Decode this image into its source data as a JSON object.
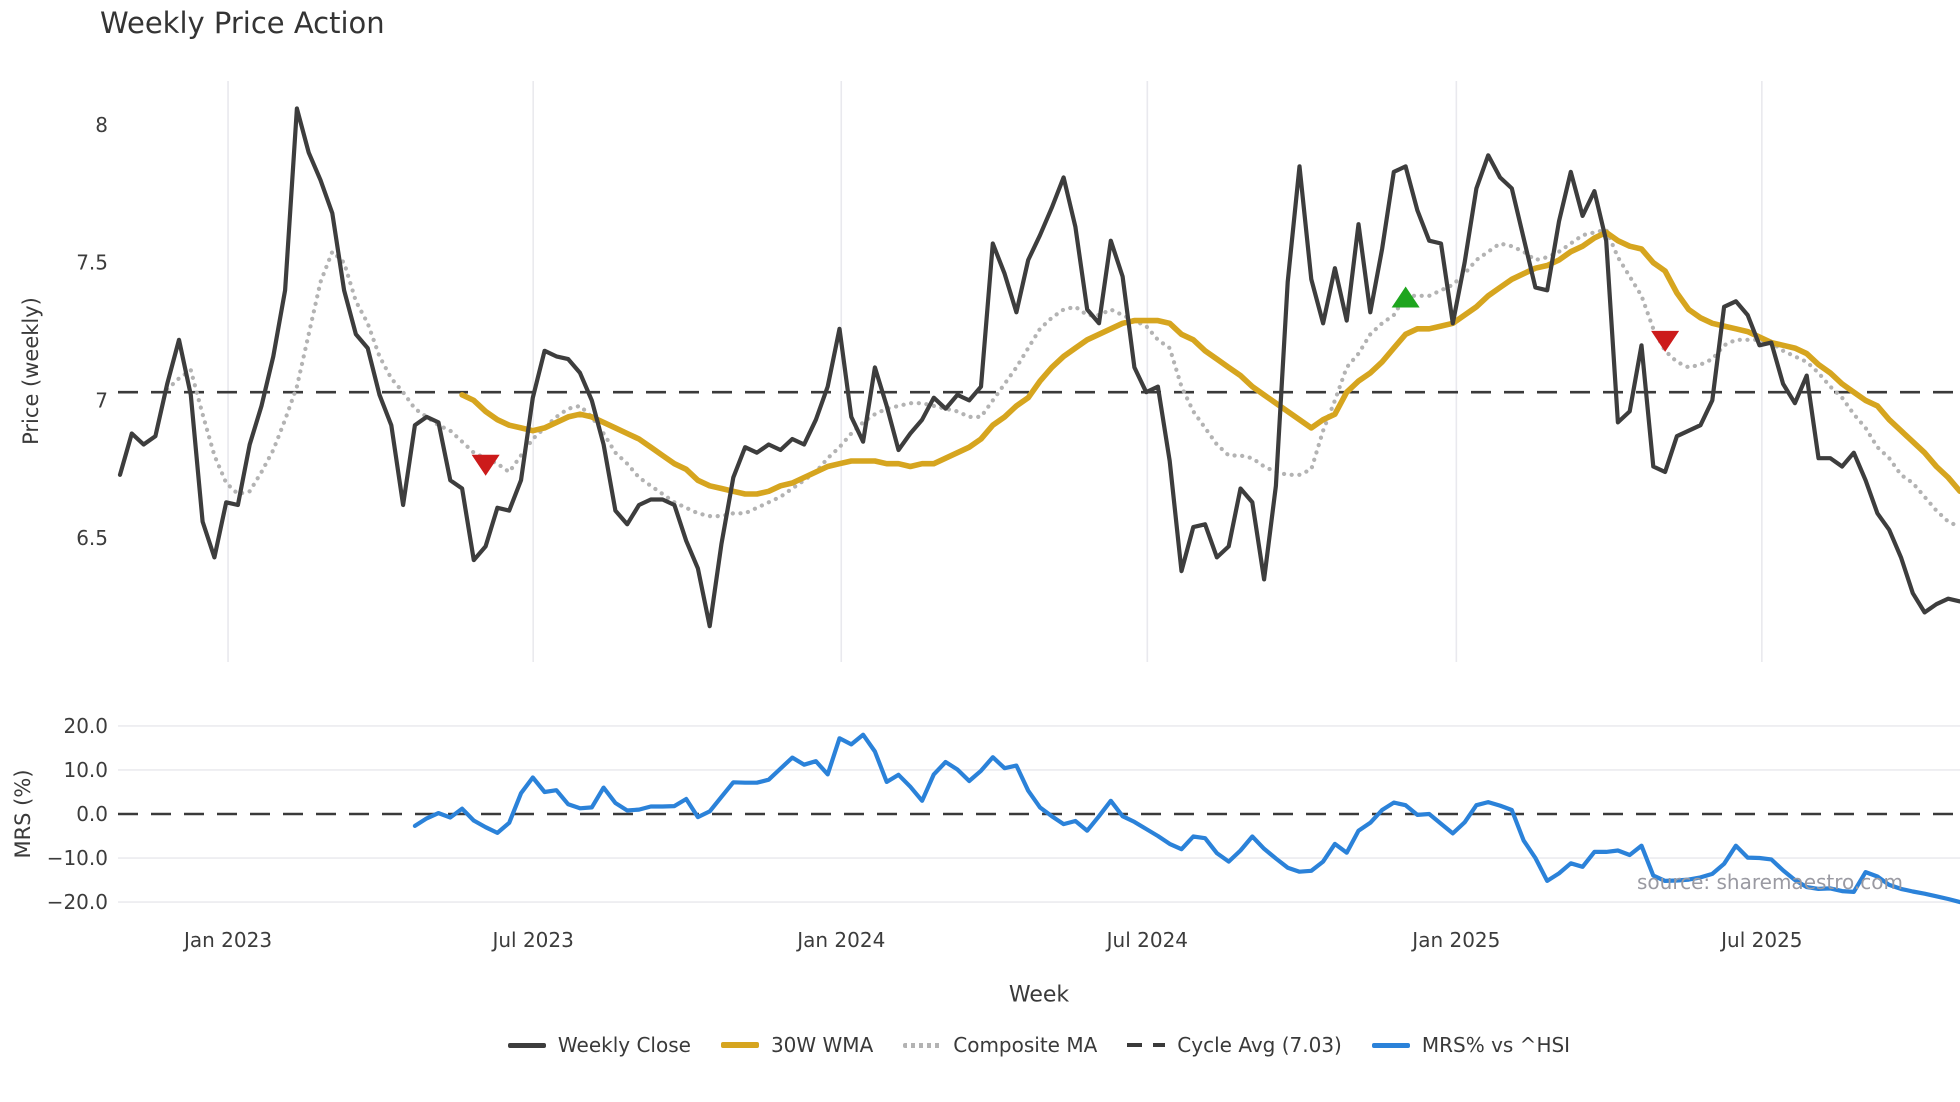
{
  "title": "Weekly Price Action",
  "watermark": "source: sharemaestro.com",
  "chart_data": {
    "type": "line",
    "xlabel": "Week",
    "weeks_total": 156,
    "x_ticks": [
      {
        "label": "Jan 2023",
        "week": 9.16
      },
      {
        "label": "Jul 2023",
        "week": 35.03
      },
      {
        "label": "Jan 2024",
        "week": 61.15
      },
      {
        "label": "Jul 2024",
        "week": 87.1
      },
      {
        "label": "Jan 2025",
        "week": 113.3
      },
      {
        "label": "Jul 2025",
        "week": 139.2
      }
    ],
    "panels": [
      {
        "name": "price",
        "ylabel": "Price (weekly)",
        "ylim": [
          6.05,
          8.16
        ],
        "yticks": [
          {
            "label": "8",
            "value": 8.0
          },
          {
            "label": "7.5",
            "value": 7.5
          },
          {
            "label": "7",
            "value": 7.0
          },
          {
            "label": "6.5",
            "value": 6.5
          }
        ],
        "grid": "vertical"
      },
      {
        "name": "mrs",
        "ylabel": "MRS (%)",
        "ylim": [
          -24.3,
          24.3
        ],
        "yticks": [
          {
            "label": "20.0",
            "value": 20
          },
          {
            "label": "10.0",
            "value": 10
          },
          {
            "label": "0.0",
            "value": 0
          },
          {
            "label": "−10.0",
            "value": -10
          },
          {
            "label": "−20.0",
            "value": -20
          }
        ],
        "grid": "horizontal",
        "zero_line_dashed": true
      }
    ],
    "series": {
      "weekly_close": {
        "label": "Weekly Close",
        "color": "#3d3d3d",
        "panel": "price",
        "start_week": 0,
        "values": [
          6.73,
          6.88,
          6.84,
          6.87,
          7.06,
          7.22,
          7.02,
          6.56,
          6.43,
          6.63,
          6.62,
          6.84,
          6.98,
          7.16,
          7.4,
          8.06,
          7.9,
          7.8,
          7.68,
          7.4,
          7.24,
          7.19,
          7.02,
          6.91,
          6.62,
          6.91,
          6.94,
          6.92,
          6.71,
          6.68,
          6.42,
          6.47,
          6.61,
          6.6,
          6.71,
          7.01,
          7.18,
          7.16,
          7.15,
          7.1,
          7.0,
          6.84,
          6.6,
          6.55,
          6.62,
          6.64,
          6.64,
          6.62,
          6.49,
          6.39,
          6.18,
          6.48,
          6.72,
          6.83,
          6.81,
          6.84,
          6.82,
          6.86,
          6.84,
          6.93,
          7.05,
          7.26,
          6.94,
          6.85,
          7.12,
          6.98,
          6.82,
          6.88,
          6.93,
          7.01,
          6.97,
          7.02,
          7.0,
          7.05,
          7.57,
          7.46,
          7.32,
          7.51,
          7.6,
          7.7,
          7.81,
          7.63,
          7.33,
          7.28,
          7.58,
          7.45,
          7.12,
          7.03,
          7.05,
          6.78,
          6.38,
          6.54,
          6.55,
          6.43,
          6.47,
          6.68,
          6.63,
          6.35,
          6.69,
          7.43,
          7.85,
          7.44,
          7.28,
          7.48,
          7.29,
          7.64,
          7.32,
          7.55,
          7.83,
          7.85,
          7.69,
          7.58,
          7.57,
          7.28,
          7.5,
          7.77,
          7.89,
          7.81,
          7.77,
          7.59,
          7.41,
          7.4,
          7.65,
          7.83,
          7.67,
          7.76,
          7.58,
          6.92,
          6.96,
          7.2,
          6.76,
          6.74,
          6.87,
          6.89,
          6.91,
          7.0,
          7.34,
          7.36,
          7.31,
          7.2,
          7.21,
          7.06,
          6.99,
          7.09,
          6.79,
          6.79,
          6.76,
          6.81,
          6.71,
          6.59,
          6.53,
          6.43,
          6.3,
          6.23,
          6.26,
          6.28,
          6.27
        ]
      },
      "wma_30w": {
        "label": "30W WMA",
        "color": "#d6a51f",
        "panel": "price",
        "start_week": 29,
        "values": [
          7.02,
          7.0,
          6.96,
          6.93,
          6.91,
          6.9,
          6.89,
          6.9,
          6.92,
          6.94,
          6.95,
          6.94,
          6.92,
          6.9,
          6.88,
          6.86,
          6.83,
          6.8,
          6.77,
          6.75,
          6.71,
          6.69,
          6.68,
          6.67,
          6.66,
          6.66,
          6.67,
          6.69,
          6.7,
          6.72,
          6.74,
          6.76,
          6.77,
          6.78,
          6.78,
          6.78,
          6.77,
          6.77,
          6.76,
          6.77,
          6.77,
          6.79,
          6.81,
          6.83,
          6.86,
          6.91,
          6.94,
          6.98,
          7.01,
          7.07,
          7.12,
          7.16,
          7.19,
          7.22,
          7.24,
          7.26,
          7.28,
          7.29,
          7.29,
          7.29,
          7.28,
          7.24,
          7.22,
          7.18,
          7.15,
          7.12,
          7.09,
          7.05,
          7.02,
          6.99,
          6.96,
          6.93,
          6.9,
          6.93,
          6.95,
          7.03,
          7.07,
          7.1,
          7.14,
          7.19,
          7.24,
          7.26,
          7.26,
          7.27,
          7.28,
          7.31,
          7.34,
          7.38,
          7.41,
          7.44,
          7.46,
          7.48,
          7.49,
          7.51,
          7.54,
          7.56,
          7.59,
          7.61,
          7.58,
          7.56,
          7.55,
          7.5,
          7.47,
          7.39,
          7.33,
          7.3,
          7.28,
          7.27,
          7.26,
          7.25,
          7.23,
          7.21,
          7.2,
          7.19,
          7.17,
          7.13,
          7.1,
          7.06,
          7.03,
          7.0,
          6.98,
          6.93,
          6.89,
          6.85,
          6.81,
          6.76,
          6.72,
          6.67
        ]
      },
      "composite_ma": {
        "label": "Composite MA",
        "color": "#b3b3b3",
        "panel": "price",
        "style": "dotted",
        "start_week": 4,
        "values": [
          7.04,
          7.08,
          7.11,
          6.95,
          6.8,
          6.7,
          6.66,
          6.67,
          6.74,
          6.82,
          6.93,
          7.05,
          7.24,
          7.43,
          7.54,
          7.5,
          7.36,
          7.28,
          7.16,
          7.08,
          7.03,
          6.97,
          6.94,
          6.91,
          6.89,
          6.85,
          6.81,
          6.79,
          6.77,
          6.74,
          6.8,
          6.86,
          6.9,
          6.94,
          6.97,
          6.98,
          6.94,
          6.88,
          6.81,
          6.77,
          6.72,
          6.69,
          6.66,
          6.63,
          6.61,
          6.59,
          6.58,
          6.58,
          6.59,
          6.59,
          6.61,
          6.63,
          6.65,
          6.68,
          6.71,
          6.74,
          6.79,
          6.83,
          6.88,
          6.92,
          6.95,
          6.97,
          6.98,
          6.99,
          6.99,
          6.98,
          6.97,
          6.96,
          6.94,
          6.94,
          7.0,
          7.06,
          7.12,
          7.19,
          7.26,
          7.3,
          7.33,
          7.34,
          7.31,
          7.31,
          7.33,
          7.31,
          7.29,
          7.27,
          7.22,
          7.19,
          7.05,
          6.96,
          6.9,
          6.84,
          6.8,
          6.8,
          6.79,
          6.76,
          6.74,
          6.73,
          6.73,
          6.75,
          6.89,
          7.0,
          7.12,
          7.17,
          7.24,
          7.28,
          7.31,
          7.38,
          7.38,
          7.38,
          7.4,
          7.42,
          7.46,
          7.51,
          7.54,
          7.57,
          7.56,
          7.54,
          7.51,
          7.52,
          7.54,
          7.57,
          7.6,
          7.61,
          7.62,
          7.52,
          7.45,
          7.38,
          7.26,
          7.18,
          7.14,
          7.12,
          7.13,
          7.15,
          7.2,
          7.22,
          7.22,
          7.22,
          7.21,
          7.18,
          7.16,
          7.14,
          7.1,
          7.05,
          7.01,
          6.95,
          6.9,
          6.83,
          6.79,
          6.73,
          6.7,
          6.65,
          6.6,
          6.56,
          6.54
        ]
      },
      "cycle_avg": {
        "label": "Cycle Avg (7.03)",
        "color": "#3a3a3a",
        "panel": "price",
        "style": "dashed",
        "value": 7.03
      },
      "mrs": {
        "label": "MRS% vs ^HSI",
        "color": "#2b82d9",
        "panel": "mrs",
        "start_week": 25,
        "values": [
          -2.7,
          -1.0,
          0.2,
          -0.8,
          1.2,
          -1.5,
          -3.0,
          -4.3,
          -2.0,
          4.7,
          8.3,
          5.0,
          5.4,
          2.2,
          1.3,
          1.5,
          6.0,
          2.5,
          0.8,
          1.0,
          1.7,
          1.7,
          1.8,
          3.4,
          -0.7,
          0.6,
          3.9,
          7.2,
          7.1,
          7.1,
          7.8,
          10.3,
          12.8,
          11.2,
          12.0,
          9.0,
          17.2,
          15.8,
          18.0,
          14.2,
          7.3,
          8.9,
          6.2,
          3.0,
          9.0,
          11.8,
          10.1,
          7.5,
          9.8,
          12.9,
          10.4,
          11.0,
          5.3,
          1.5,
          -0.5,
          -2.3,
          -1.6,
          -3.8,
          -0.5,
          3.0,
          -0.5,
          -1.8,
          -3.4,
          -5.0,
          -6.8,
          -8.0,
          -5.1,
          -5.5,
          -8.9,
          -10.8,
          -8.3,
          -5.1,
          -7.9,
          -10.1,
          -12.2,
          -13.1,
          -12.9,
          -10.8,
          -6.8,
          -8.8,
          -3.8,
          -2.0,
          0.9,
          2.6,
          2.0,
          -0.2,
          0.0,
          -2.2,
          -4.4,
          -1.9,
          2.0,
          2.7,
          1.9,
          0.9,
          -6.0,
          -10.0,
          -15.2,
          -13.5,
          -11.2,
          -12.0,
          -8.6,
          -8.6,
          -8.3,
          -9.3,
          -7.2,
          -14.0,
          -15.2,
          -15.1,
          -14.9,
          -14.4,
          -13.6,
          -11.3,
          -7.2,
          -9.9,
          -10.0,
          -10.3,
          -12.8,
          -15.0,
          -16.6,
          -17.0,
          -16.9,
          -17.5,
          -17.7,
          -13.2,
          -14.2,
          -16.1,
          -17.0,
          -17.6,
          -18.1,
          -18.7,
          -19.3,
          -20.0
        ]
      }
    },
    "markers": [
      {
        "type": "sell",
        "symbol": "triangle-down",
        "week": 31,
        "price": 6.77,
        "color": "#cc1b1b"
      },
      {
        "type": "buy",
        "symbol": "triangle-up",
        "week": 109,
        "price": 7.37,
        "color": "#1ea51e"
      },
      {
        "type": "sell",
        "symbol": "triangle-down",
        "week": 131,
        "price": 7.22,
        "color": "#cc1b1b"
      }
    ]
  },
  "legend": {
    "items": [
      "Weekly Close",
      "30W WMA",
      "Composite MA",
      "Cycle Avg (7.03)",
      "MRS% vs ^HSI"
    ]
  }
}
